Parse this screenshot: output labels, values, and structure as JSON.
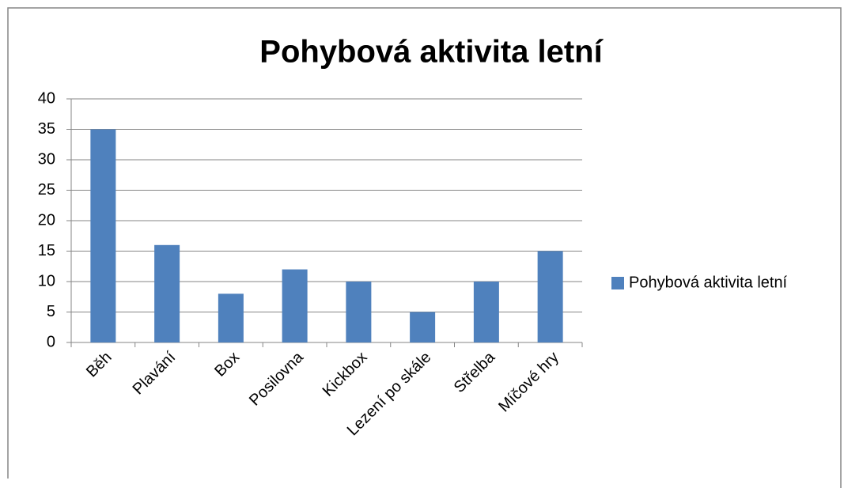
{
  "chart_data": {
    "type": "bar",
    "title": "Pohybová aktivita letní",
    "categories": [
      "Běh",
      "Plavání",
      "Box",
      "Posilovna",
      "Kickbox",
      "Lezení po skále",
      "Střelba",
      "Míčové hry"
    ],
    "series": [
      {
        "name": "Pohybová aktivita letní",
        "color": "#4f81bd",
        "values": [
          35,
          16,
          8,
          12,
          10,
          5,
          10,
          15
        ]
      }
    ],
    "ylim": [
      0,
      40
    ],
    "yticks": [
      0,
      5,
      10,
      15,
      20,
      25,
      30,
      35,
      40
    ],
    "grid": true,
    "legend": "right"
  }
}
